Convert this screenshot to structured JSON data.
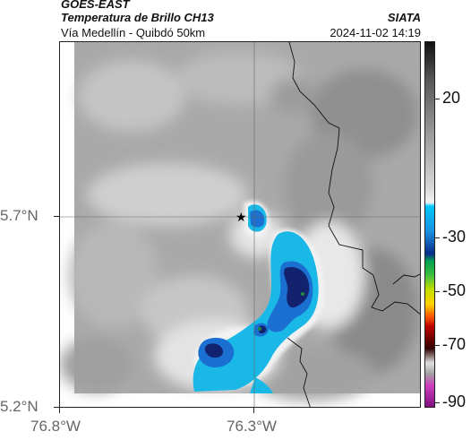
{
  "header": {
    "satellite": "GOES-EAST",
    "product": "Temperatura de Brillo CH13",
    "source": "SIATA",
    "route": "Vía Medellín - Quibdó 50km",
    "datetime": "2024-11-02 14:19"
  },
  "axes": {
    "lat_ticks": [
      "5.7°N",
      "5.2°N"
    ],
    "lon_ticks": [
      "76.8°W",
      "76.3°W"
    ]
  },
  "colorbar": {
    "ticks": [
      "20",
      "-30",
      "-50",
      "-70",
      "-90"
    ]
  },
  "map": {
    "marker": "star",
    "features": [
      "brightness-temperature-field",
      "cold-cloud-tops",
      "boundary-lines",
      "grid-lines"
    ]
  },
  "colors": {
    "cold_cloud_light": "#19b8e6",
    "cold_cloud_mid": "#1a6fd0",
    "cold_cloud_dark": "#12226e",
    "warm_gray": "#a8a8a8"
  }
}
